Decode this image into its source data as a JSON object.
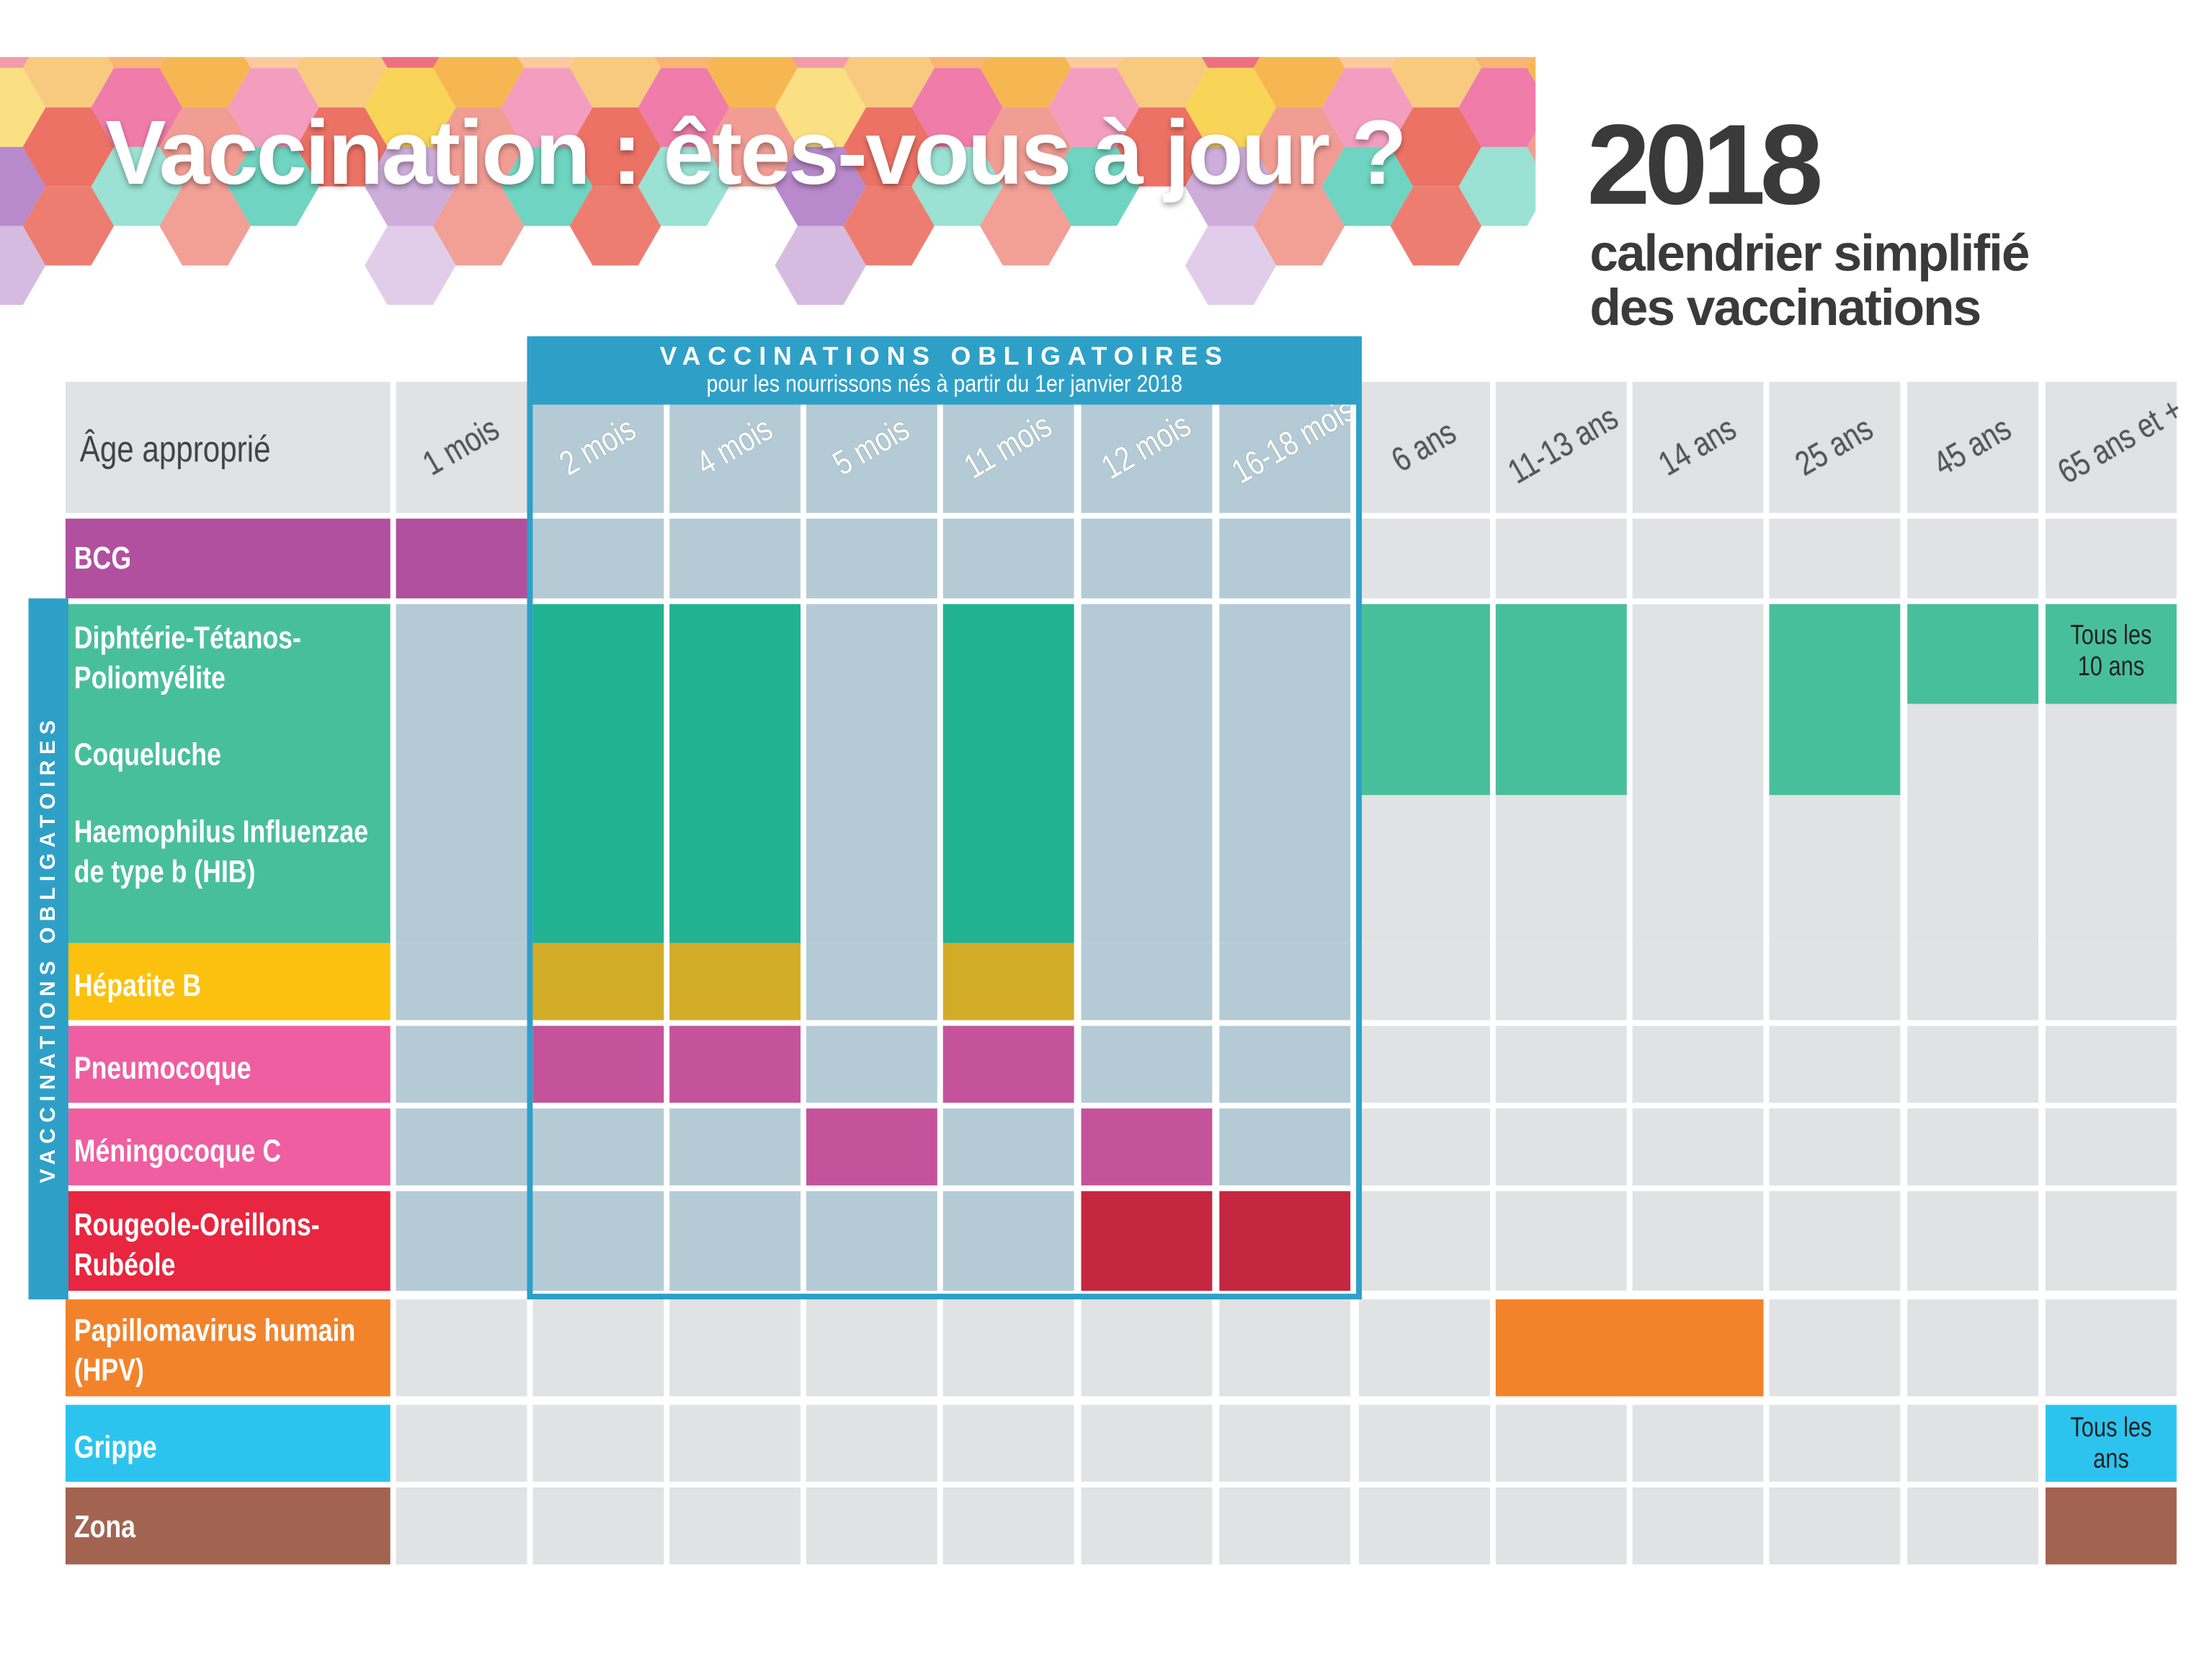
{
  "header": {
    "title": "Vaccination : êtes-vous à jour ?",
    "year": "2018",
    "subtitle_line1": "calendrier simplifié",
    "subtitle_line2": "des vaccinations"
  },
  "mandatory_banner": {
    "line1": "VACCINATIONS OBLIGATOIRES",
    "line2": "pour les nourrissons nés à partir du 1er janvier 2018"
  },
  "side_label": "VACCINATIONS OBLIGATOIRES",
  "age_header_label": "Âge approprié",
  "ages": [
    "1 mois",
    "2 mois",
    "4 mois",
    "5 mois",
    "11 mois",
    "12 mois",
    "16-18 mois",
    "6 ans",
    "11-13 ans",
    "14 ans",
    "25 ans",
    "45 ans",
    "65 ans et +"
  ],
  "vaccines": [
    {
      "label": "BCG",
      "color": "#b1509f"
    },
    {
      "label": "Diphtérie-Tétanos-Poliomyélite",
      "color": "#48bf9b"
    },
    {
      "label": "Coqueluche",
      "color": "#48bf9b"
    },
    {
      "label": "Haemophilus Influenzae de type b (HIB)",
      "color": "#48bf9b"
    },
    {
      "label": "Hépatite B",
      "color": "#fcc10f"
    },
    {
      "label": "Pneumocoque",
      "color": "#ef5ea0"
    },
    {
      "label": "Méningocoque C",
      "color": "#ef5ea0"
    },
    {
      "label": "Rougeole-Oreillons-Rubéole",
      "color": "#e8263f"
    },
    {
      "label": "Papillomavirus humain (HPV)",
      "color": "#f2832a"
    },
    {
      "label": "Grippe",
      "color": "#2cc4ef"
    },
    {
      "label": "Zona",
      "color": "#a26450"
    }
  ],
  "notes": {
    "dtp_65": "Tous les 10 ans",
    "grippe_65": "Tous les ans"
  },
  "colors": {
    "teal_mandatory": "#21b291",
    "teal": "#48bf9b",
    "gold": "#d3ac27",
    "pink_dark": "#c4539c",
    "red_dark": "#c4273f",
    "orange": "#f2832a",
    "cyan": "#2cc4ef",
    "brown": "#a26450",
    "blue_frame": "#2ea0c8"
  }
}
